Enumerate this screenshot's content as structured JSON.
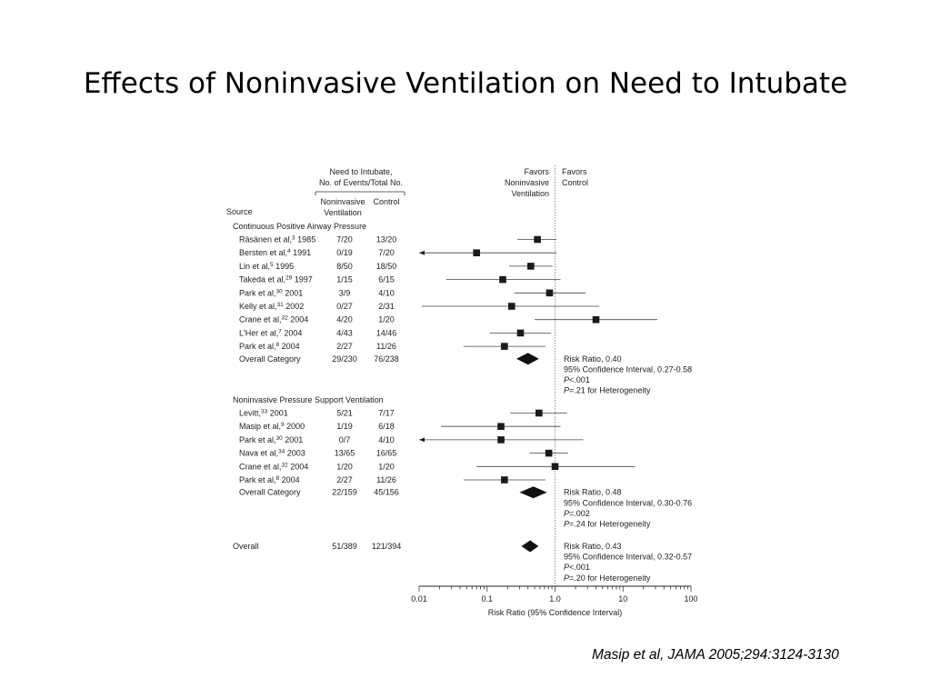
{
  "slide": {
    "title": "Effects of Noninvasive Ventilation on Need to Intubate",
    "citation": "Masip et al, JAMA 2005;294:3124-3130"
  },
  "chart_data": {
    "type": "forest",
    "scale": "log",
    "xlim": [
      0.01,
      100
    ],
    "xticks": [
      0.01,
      0.1,
      1.0,
      10,
      100
    ],
    "xtick_labels": [
      "0.01",
      "0.1",
      "1.0",
      "10",
      "100"
    ],
    "xlabel": "Risk Ratio (95% Confidence Interval)",
    "reference_line": 1.0,
    "headers": {
      "group_header_line1": "Need to Intubate,",
      "group_header_line2": "No. of Events/Total No.",
      "col1_line1": "Noninvasive",
      "col1_line2": "Ventilation",
      "col2": "Control",
      "source": "Source",
      "favors_left_1": "Favors",
      "favors_left_2": "Noninvasive",
      "favors_left_3": "Ventilation",
      "favors_right_1": "Favors",
      "favors_right_2": "Control"
    },
    "sections": [
      {
        "title": "Continuous Positive Airway Pressure",
        "studies": [
          {
            "author": "Räsänen et al,",
            "ref": "3",
            "year": "1985",
            "niv": "7/20",
            "control": "13/20",
            "rr": 0.55,
            "lo": 0.28,
            "hi": 1.05
          },
          {
            "author": "Bersten et al,",
            "ref": "4",
            "year": "1991",
            "niv": "0/19",
            "control": "7/20",
            "rr": 0.07,
            "lo": 0.01,
            "hi": 1.05,
            "arrow_left": true
          },
          {
            "author": "Lin et al,",
            "ref": "5",
            "year": "1995",
            "niv": "8/50",
            "control": "18/50",
            "rr": 0.44,
            "lo": 0.21,
            "hi": 0.92
          },
          {
            "author": "Takeda et al,",
            "ref": "29",
            "year": "1997",
            "niv": "1/15",
            "control": "6/15",
            "rr": 0.17,
            "lo": 0.025,
            "hi": 1.2
          },
          {
            "author": "Park et al,",
            "ref": "30",
            "year": "2001",
            "niv": "3/9",
            "control": "4/10",
            "rr": 0.83,
            "lo": 0.25,
            "hi": 2.8
          },
          {
            "author": "Kelly et al,",
            "ref": "31",
            "year": "2002",
            "niv": "0/27",
            "control": "2/31",
            "rr": 0.23,
            "lo": 0.011,
            "hi": 4.5
          },
          {
            "author": "Crane et al,",
            "ref": "32",
            "year": "2004",
            "niv": "4/20",
            "control": "1/20",
            "rr": 4.0,
            "lo": 0.5,
            "hi": 32
          },
          {
            "author": "L'Her et al,",
            "ref": "7",
            "year": "2004",
            "niv": "4/43",
            "control": "14/46",
            "rr": 0.31,
            "lo": 0.11,
            "hi": 0.87
          },
          {
            "author": "Park et al,",
            "ref": "8",
            "year": "2004",
            "niv": "2/27",
            "control": "11/26",
            "rr": 0.18,
            "lo": 0.045,
            "hi": 0.72
          }
        ],
        "overall": {
          "label": "Overall Category",
          "niv": "29/230",
          "control": "76/238",
          "rr": 0.4,
          "lo": 0.27,
          "hi": 0.58
        },
        "stats": [
          "Risk Ratio, 0.40",
          "95% Confidence Interval, 0.27-0.58",
          "P<.001",
          "P=.21 for Heterogeneity"
        ]
      },
      {
        "title": "Noninvasive Pressure Support Ventilation",
        "studies": [
          {
            "author": "Levitt,",
            "ref": "33",
            "year": "2001",
            "niv": "5/21",
            "control": "7/17",
            "rr": 0.58,
            "lo": 0.22,
            "hi": 1.5
          },
          {
            "author": "Masip et al,",
            "ref": "9",
            "year": "2000",
            "niv": "1/19",
            "control": "6/18",
            "rr": 0.16,
            "lo": 0.021,
            "hi": 1.2
          },
          {
            "author": "Park et al,",
            "ref": "30",
            "year": "2001",
            "niv": "0/7",
            "control": "4/10",
            "rr": 0.16,
            "lo": 0.01,
            "hi": 2.6,
            "arrow_left": true
          },
          {
            "author": "Nava et al,",
            "ref": "34",
            "year": "2003",
            "niv": "13/65",
            "control": "16/65",
            "rr": 0.81,
            "lo": 0.42,
            "hi": 1.55
          },
          {
            "author": "Crane et al,",
            "ref": "32",
            "year": "2004",
            "niv": "1/20",
            "control": "1/20",
            "rr": 1.0,
            "lo": 0.07,
            "hi": 15
          },
          {
            "author": "Park et al,",
            "ref": "8",
            "year": "2004",
            "niv": "2/27",
            "control": "11/26",
            "rr": 0.18,
            "lo": 0.045,
            "hi": 0.72
          }
        ],
        "overall": {
          "label": "Overall Category",
          "niv": "22/159",
          "control": "45/156",
          "rr": 0.48,
          "lo": 0.3,
          "hi": 0.76
        },
        "stats": [
          "Risk Ratio, 0.48",
          "95% Confidence Interval, 0.30-0.76",
          "P=.002",
          "P=.24 for Heterogeneity"
        ]
      }
    ],
    "overall": {
      "label": "Overall",
      "niv": "51/389",
      "control": "121/394",
      "rr": 0.43,
      "lo": 0.32,
      "hi": 0.57
    },
    "overall_stats": [
      "Risk Ratio, 0.43",
      "95% Confidence Interval, 0.32-0.57",
      "P<.001",
      "P=.20 for Heterogeneity"
    ]
  }
}
